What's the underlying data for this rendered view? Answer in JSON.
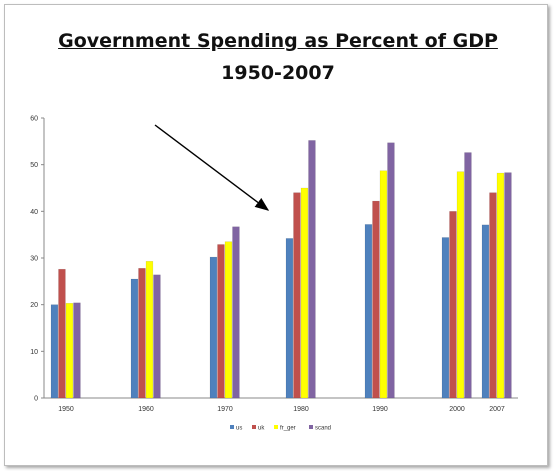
{
  "chart_data": {
    "type": "bar",
    "title": "Government Spending as Percent of GDP",
    "subtitle": "1950-2007",
    "categories": [
      "1950",
      "1960",
      "1970",
      "1980",
      "1990",
      "2000",
      "2007"
    ],
    "series": [
      {
        "name": "us",
        "color": "#4F81BD",
        "values": [
          20,
          25.5,
          30.2,
          34.2,
          37.2,
          34.4,
          37.1
        ]
      },
      {
        "name": "uk",
        "color": "#C0504D",
        "values": [
          27.6,
          27.8,
          32.9,
          44,
          42.2,
          40,
          44
        ]
      },
      {
        "name": "fr_ger",
        "color": "#FFFF00",
        "values": [
          20.3,
          29.3,
          33.5,
          45,
          48.7,
          48.5,
          48.2
        ]
      },
      {
        "name": "scand",
        "color": "#8064A2",
        "values": [
          20.4,
          26.4,
          36.7,
          55.2,
          54.7,
          52.6,
          48.3
        ]
      }
    ],
    "ylim": [
      0,
      60
    ],
    "yticks": [
      0,
      10,
      20,
      30,
      40,
      50,
      60
    ],
    "grid": false,
    "legend": "bottom",
    "annotation": "arrow pointing to 1980"
  }
}
